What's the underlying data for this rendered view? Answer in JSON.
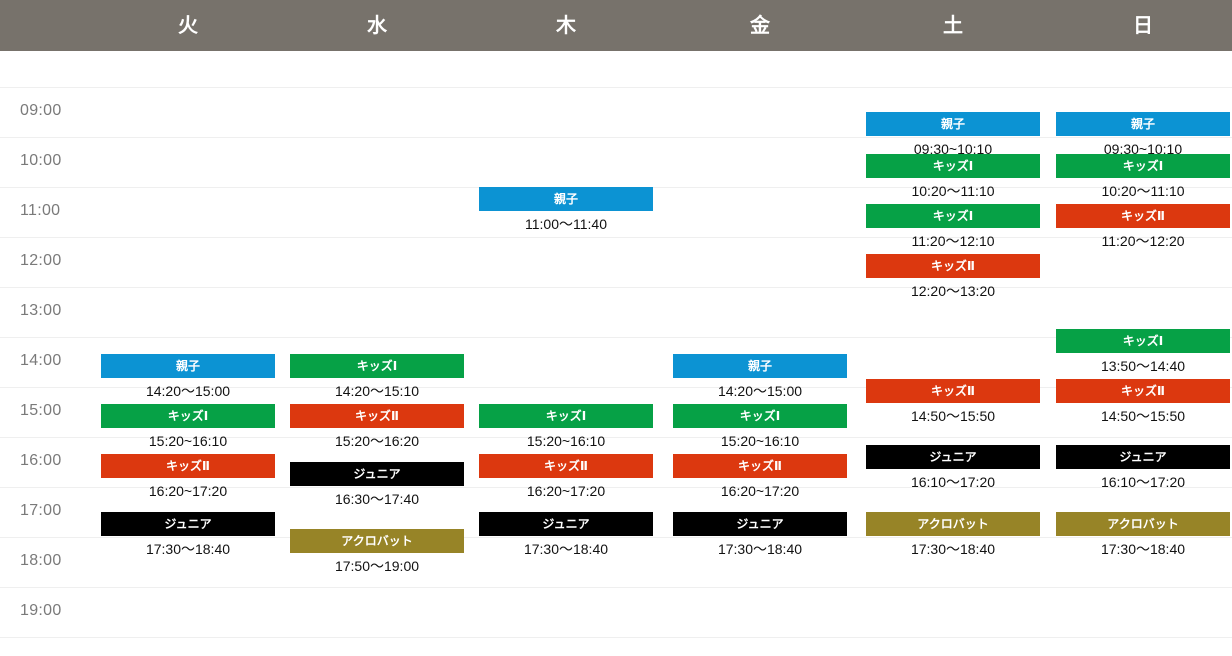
{
  "days": [
    "火",
    "水",
    "木",
    "金",
    "土",
    "日"
  ],
  "hours": [
    "09:00",
    "10:00",
    "11:00",
    "12:00",
    "13:00",
    "14:00",
    "15:00",
    "16:00",
    "17:00",
    "18:00",
    "19:00"
  ],
  "classes": {
    "oyako": {
      "name": "親子",
      "color": "#0c93d3"
    },
    "kids1": {
      "name": "キッズⅠ",
      "color": "#06a146"
    },
    "kids2": {
      "name": "キッズⅡ",
      "color": "#dc380f"
    },
    "junior": {
      "name": "ジュニア",
      "color": "#000000"
    },
    "acro": {
      "name": "アクロバット",
      "color": "#978427"
    }
  },
  "events": [
    {
      "day": 0,
      "cls": "oyako",
      "start": "14:20",
      "time": "14:20〜15:00"
    },
    {
      "day": 0,
      "cls": "kids1",
      "start": "15:20",
      "time": "15:20~16:10"
    },
    {
      "day": 0,
      "cls": "kids2",
      "start": "16:20",
      "time": "16:20~17:20"
    },
    {
      "day": 0,
      "cls": "junior",
      "start": "17:30",
      "time": "17:30〜18:40"
    },
    {
      "day": 1,
      "cls": "kids1",
      "start": "14:20",
      "time": "14:20〜15:10"
    },
    {
      "day": 1,
      "cls": "kids2",
      "start": "15:20",
      "time": "15:20〜16:20"
    },
    {
      "day": 1,
      "cls": "junior",
      "start": "16:30",
      "time": "16:30〜17:40"
    },
    {
      "day": 1,
      "cls": "acro",
      "start": "17:50",
      "time": "17:50〜19:00"
    },
    {
      "day": 2,
      "cls": "oyako",
      "start": "11:00",
      "time": "11:00〜11:40"
    },
    {
      "day": 2,
      "cls": "kids1",
      "start": "15:20",
      "time": "15:20~16:10"
    },
    {
      "day": 2,
      "cls": "kids2",
      "start": "16:20",
      "time": "16:20~17:20"
    },
    {
      "day": 2,
      "cls": "junior",
      "start": "17:30",
      "time": "17:30〜18:40"
    },
    {
      "day": 3,
      "cls": "oyako",
      "start": "14:20",
      "time": "14:20〜15:00"
    },
    {
      "day": 3,
      "cls": "kids1",
      "start": "15:20",
      "time": "15:20~16:10"
    },
    {
      "day": 3,
      "cls": "kids2",
      "start": "16:20",
      "time": "16:20~17:20"
    },
    {
      "day": 3,
      "cls": "junior",
      "start": "17:30",
      "time": "17:30〜18:40"
    },
    {
      "day": 4,
      "cls": "oyako",
      "start": "09:30",
      "time": "09:30~10:10"
    },
    {
      "day": 4,
      "cls": "kids1",
      "start": "10:20",
      "time": "10:20〜11:10"
    },
    {
      "day": 4,
      "cls": "kids1",
      "start": "11:20",
      "time": "11:20〜12:10"
    },
    {
      "day": 4,
      "cls": "kids2",
      "start": "12:20",
      "time": "12:20〜13:20"
    },
    {
      "day": 4,
      "cls": "kids2",
      "start": "14:50",
      "time": "14:50〜15:50"
    },
    {
      "day": 4,
      "cls": "junior",
      "start": "16:10",
      "time": "16:10〜17:20"
    },
    {
      "day": 4,
      "cls": "acro",
      "start": "17:30",
      "time": "17:30〜18:40"
    },
    {
      "day": 5,
      "cls": "oyako",
      "start": "09:30",
      "time": "09:30~10:10"
    },
    {
      "day": 5,
      "cls": "kids1",
      "start": "10:20",
      "time": "10:20〜11:10"
    },
    {
      "day": 5,
      "cls": "kids2",
      "start": "11:20",
      "time": "11:20〜12:20"
    },
    {
      "day": 5,
      "cls": "kids1",
      "start": "13:50",
      "time": "13:50〜14:40"
    },
    {
      "day": 5,
      "cls": "kids2",
      "start": "14:50",
      "time": "14:50〜15:50"
    },
    {
      "day": 5,
      "cls": "junior",
      "start": "16:10",
      "time": "16:10〜17:20"
    },
    {
      "day": 5,
      "cls": "acro",
      "start": "17:30",
      "time": "17:30〜18:40"
    }
  ]
}
